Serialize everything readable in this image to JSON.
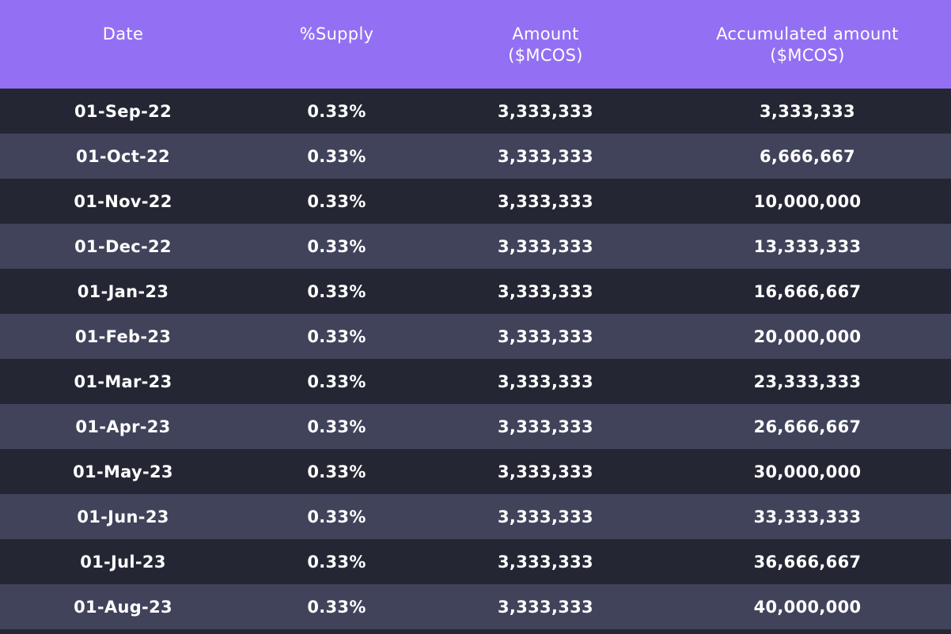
{
  "chart_data": {
    "type": "table",
    "columns": [
      "Date",
      "%Supply",
      "Amount\n($MCOS)",
      "Accumulated amount\n($MCOS)"
    ],
    "rows": [
      [
        "01-Sep-22",
        "0.33%",
        "3,333,333",
        "3,333,333"
      ],
      [
        "01-Oct-22",
        "0.33%",
        "3,333,333",
        "6,666,667"
      ],
      [
        "01-Nov-22",
        "0.33%",
        "3,333,333",
        "10,000,000"
      ],
      [
        "01-Dec-22",
        "0.33%",
        "3,333,333",
        "13,333,333"
      ],
      [
        "01-Jan-23",
        "0.33%",
        "3,333,333",
        "16,666,667"
      ],
      [
        "01-Feb-23",
        "0.33%",
        "3,333,333",
        "20,000,000"
      ],
      [
        "01-Mar-23",
        "0.33%",
        "3,333,333",
        "23,333,333"
      ],
      [
        "01-Apr-23",
        "0.33%",
        "3,333,333",
        "26,666,667"
      ],
      [
        "01-May-23",
        "0.33%",
        "3,333,333",
        "30,000,000"
      ],
      [
        "01-Jun-23",
        "0.33%",
        "3,333,333",
        "33,333,333"
      ],
      [
        "01-Jul-23",
        "0.33%",
        "3,333,333",
        "36,666,667"
      ],
      [
        "01-Aug-23",
        "0.33%",
        "3,333,333",
        "40,000,000"
      ]
    ]
  },
  "colors": {
    "header_bg": "#9370f3",
    "row_dark": "#242733",
    "row_light": "#40435a",
    "text": "#ffffff"
  }
}
